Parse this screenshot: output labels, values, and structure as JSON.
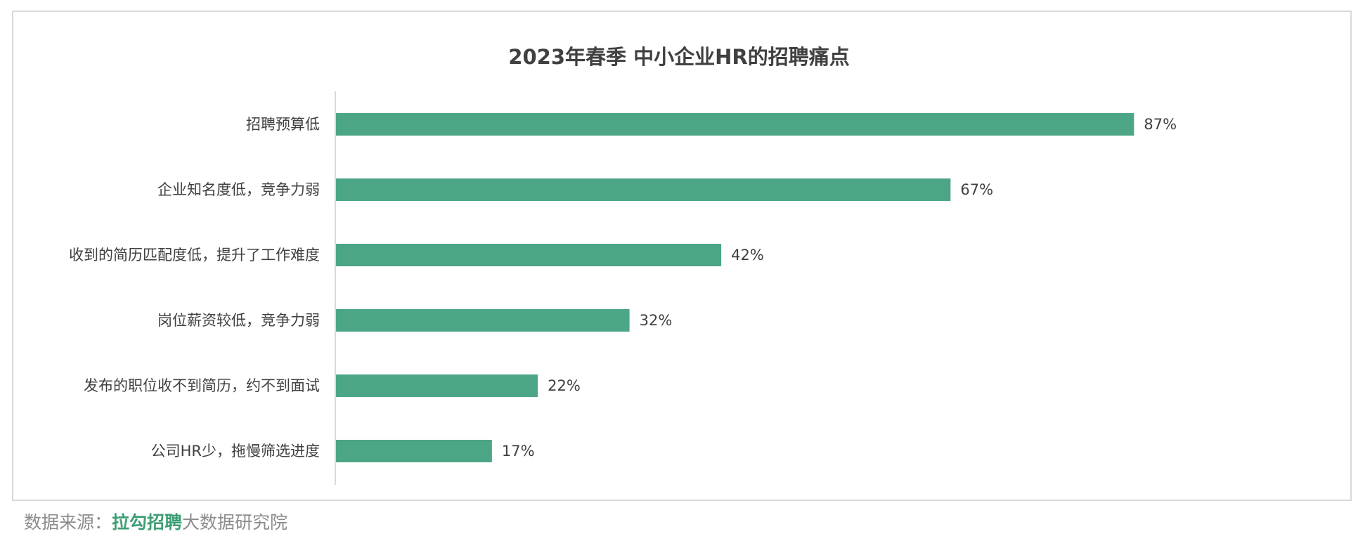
{
  "chart_data": {
    "type": "bar",
    "orientation": "horizontal",
    "title": "2023年春季 中小企业HR的招聘痛点",
    "categories": [
      "招聘预算低",
      "企业知名度低，竞争力弱",
      "收到的简历匹配度低，提升了工作难度",
      "岗位薪资较低，竞争力弱",
      "发布的职位收不到简历，约不到面试",
      "公司HR少，拖慢筛选进度"
    ],
    "values": [
      87,
      67,
      42,
      32,
      22,
      17
    ],
    "value_labels": [
      "87%",
      "67%",
      "42%",
      "32%",
      "22%",
      "17%"
    ],
    "unit": "%",
    "xlim": [
      0,
      100
    ],
    "bar_color": "#4ca686",
    "grid": false,
    "legend": "none"
  },
  "source": {
    "prefix": "数据来源：",
    "brand": "拉勾招聘",
    "suffix": "大数据研究院"
  }
}
